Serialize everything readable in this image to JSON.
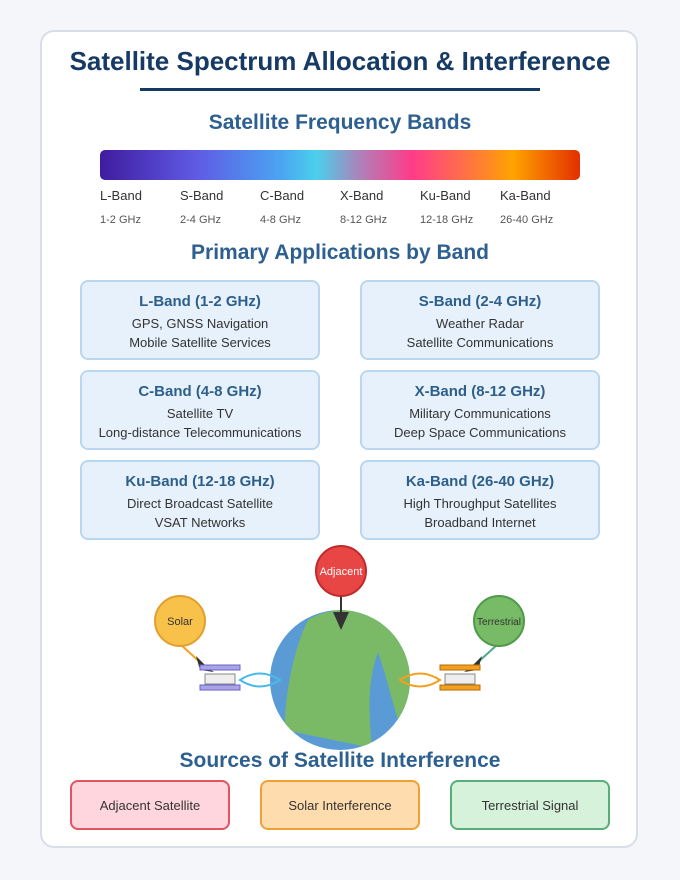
{
  "title": "Satellite Spectrum Allocation & Interference",
  "bands_section": {
    "heading": "Satellite Frequency Bands",
    "bands": [
      {
        "name": "L-Band",
        "range": "1-2 GHz"
      },
      {
        "name": "S-Band",
        "range": "2-4 GHz"
      },
      {
        "name": "C-Band",
        "range": "4-8 GHz"
      },
      {
        "name": "X-Band",
        "range": "8-12 GHz"
      },
      {
        "name": "Ku-Band",
        "range": "12-18 GHz"
      },
      {
        "name": "Ka-Band",
        "range": "26-40 GHz"
      }
    ]
  },
  "applications_section": {
    "heading": "Primary Applications by Band",
    "items": [
      {
        "title": "L-Band (1-2 GHz)",
        "lines": [
          "GPS, GNSS Navigation",
          "Mobile Satellite Services"
        ]
      },
      {
        "title": "S-Band (2-4 GHz)",
        "lines": [
          "Weather Radar",
          "Satellite Communications"
        ]
      },
      {
        "title": "C-Band (4-8 GHz)",
        "lines": [
          "Satellite TV",
          "Long-distance Telecommunications"
        ]
      },
      {
        "title": "X-Band (8-12 GHz)",
        "lines": [
          "Military Communications",
          "Deep Space Communications"
        ]
      },
      {
        "title": "Ku-Band (12-18 GHz)",
        "lines": [
          "Direct Broadcast Satellite",
          "VSAT Networks"
        ]
      },
      {
        "title": "Ka-Band (26-40 GHz)",
        "lines": [
          "High Throughput Satellites",
          "Broadband Internet"
        ]
      }
    ]
  },
  "diagram": {
    "labels": {
      "solar": "Solar",
      "adjacent": "Adjacent",
      "terrestrial": "Terrestrial"
    },
    "colors": {
      "solar": "#f7c14a",
      "adjacent": "#e84545",
      "terrestrial": "#77bb66",
      "ocean": "#5b9bd5",
      "land": "#7aba66",
      "satellite_left": "#a9a4e6",
      "satellite_right": "#f3a021",
      "beam_left": "#4ab8e8",
      "beam_right": "#f3a021"
    }
  },
  "sources_section": {
    "heading": "Sources of Satellite Interference",
    "items": [
      {
        "label": "Adjacent Satellite",
        "fill": "#ffd6dd",
        "border": "#e05561"
      },
      {
        "label": "Solar Interference",
        "fill": "#ffdcae",
        "border": "#f0a135"
      },
      {
        "label": "Terrestrial Signal",
        "fill": "#d6f2da",
        "border": "#59ad78"
      }
    ]
  }
}
